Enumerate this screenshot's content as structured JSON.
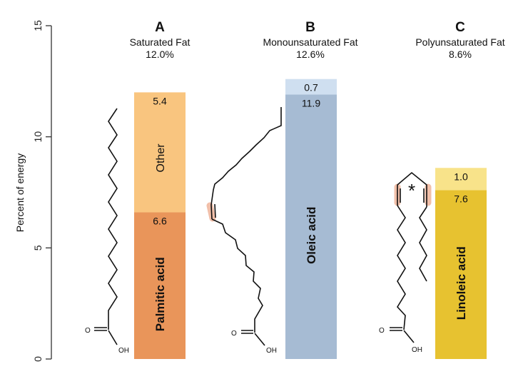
{
  "chart_data": {
    "type": "bar",
    "ylabel": "Percent of energy",
    "ylim": [
      0,
      15
    ],
    "yticks": [
      0,
      5,
      10,
      15
    ],
    "grid": false,
    "bars": [
      {
        "letter": "A",
        "subtitle": "Saturated Fat",
        "total_label": "12.0%",
        "total": 12.0,
        "structure": "palmitic",
        "segments": [
          {
            "name": "Palmitic acid",
            "value": 6.6,
            "value_label": "6.6",
            "color": "#e9955a",
            "name_style": "bold"
          },
          {
            "name": "Other",
            "value": 5.4,
            "value_label": "5.4",
            "color": "#f9c57f",
            "name_style": "normal"
          }
        ]
      },
      {
        "letter": "B",
        "subtitle": "Monounsaturated Fat",
        "total_label": "12.6%",
        "total": 12.6,
        "structure": "oleic",
        "segments": [
          {
            "name": "Oleic acid",
            "value": 11.9,
            "value_label": "11.9",
            "color": "#a6bbd3",
            "name_style": "bold"
          },
          {
            "name": "",
            "value": 0.7,
            "value_label": "0.7",
            "color": "#cfdff0",
            "name_style": "normal"
          }
        ]
      },
      {
        "letter": "C",
        "subtitle": "Polyunsaturated Fat",
        "total_label": "8.6%",
        "total": 8.6,
        "structure": "linoleic",
        "segments": [
          {
            "name": "Linoleic acid",
            "value": 7.6,
            "value_label": "7.6",
            "color": "#e7c230",
            "name_style": "bold"
          },
          {
            "name": "",
            "value": 1.0,
            "value_label": "1.0",
            "color": "#f8e38a",
            "name_style": "normal"
          }
        ]
      }
    ]
  },
  "molecule_labels": {
    "carbonyl_o": "O",
    "hydroxyl": "OH",
    "marker": "*"
  }
}
